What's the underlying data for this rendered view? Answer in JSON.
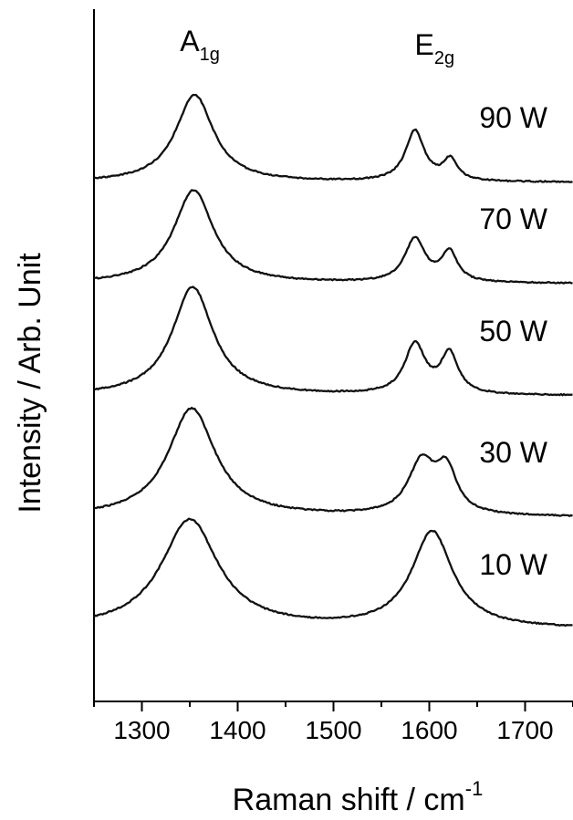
{
  "chart_data": {
    "type": "line",
    "xlabel": "Raman shift / cm",
    "xlabel_sup": "-1",
    "ylabel": "Intensity / Arb. Unit",
    "xlim": [
      1250,
      1750
    ],
    "x_ticks": [
      1300,
      1400,
      1500,
      1600,
      1700
    ],
    "y_ticks_shown": false,
    "grid": false,
    "legend": "none",
    "line_color": "#111111",
    "peak_labels": [
      {
        "base": "A",
        "sub": "1g",
        "x": 1355
      },
      {
        "base": "E",
        "sub": "2g",
        "x": 1600
      }
    ],
    "series": [
      {
        "name": "90 W",
        "baseline": 0,
        "peaks": [
          {
            "center": 1355,
            "height": 7.8,
            "width": 24
          },
          {
            "center": 1585,
            "height": 4.5,
            "width": 12
          },
          {
            "center": 1622,
            "height": 1.9,
            "width": 9
          }
        ]
      },
      {
        "name": "70 W",
        "baseline": 0,
        "peaks": [
          {
            "center": 1354,
            "height": 8.2,
            "width": 25
          },
          {
            "center": 1585,
            "height": 3.8,
            "width": 13
          },
          {
            "center": 1621,
            "height": 2.6,
            "width": 10
          }
        ]
      },
      {
        "name": "50 W",
        "baseline": 0,
        "peaks": [
          {
            "center": 1353,
            "height": 8.7,
            "width": 26
          },
          {
            "center": 1585,
            "height": 4.0,
            "width": 13
          },
          {
            "center": 1621,
            "height": 3.2,
            "width": 11
          }
        ]
      },
      {
        "name": "30 W",
        "baseline": 0,
        "peaks": [
          {
            "center": 1352,
            "height": 8.7,
            "width": 30
          },
          {
            "center": 1592,
            "height": 4.2,
            "width": 17
          },
          {
            "center": 1618,
            "height": 3.4,
            "width": 13
          }
        ]
      },
      {
        "name": "10 W",
        "baseline": 0,
        "peaks": [
          {
            "center": 1350,
            "height": 9.3,
            "width": 36
          },
          {
            "center": 1603,
            "height": 8.2,
            "width": 26
          }
        ]
      }
    ]
  }
}
